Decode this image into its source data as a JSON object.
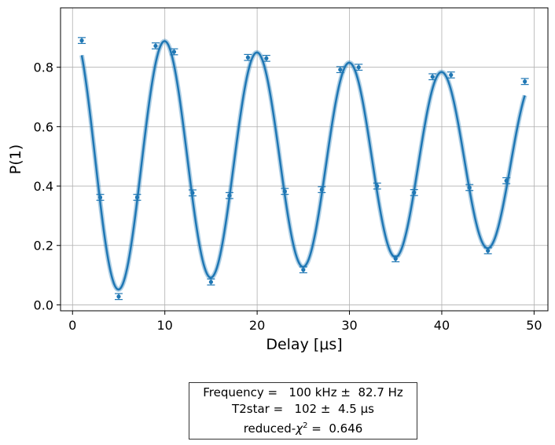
{
  "chart_data": {
    "type": "scatter",
    "xlabel": "Delay [μs]",
    "ylabel": "P(1)",
    "xlim": [
      -1.3,
      51.5
    ],
    "ylim": [
      -0.02,
      1.0
    ],
    "x_ticks": [
      0,
      10,
      20,
      30,
      40,
      50
    ],
    "y_ticks": [
      0.0,
      0.2,
      0.4,
      0.6,
      0.8
    ],
    "x_tick_labels": [
      "0",
      "10",
      "20",
      "30",
      "40",
      "50"
    ],
    "y_tick_labels": [
      "0.0",
      "0.2",
      "0.4",
      "0.6",
      "0.8"
    ],
    "grid": true,
    "series": [
      {
        "kind": "errorbar-points",
        "color": "#1f77b4",
        "x": [
          1,
          3,
          5,
          7,
          9,
          11,
          13,
          15,
          17,
          19,
          21,
          23,
          25,
          27,
          29,
          31,
          33,
          35,
          37,
          39,
          41,
          43,
          45,
          47,
          49
        ],
        "y": [
          0.89,
          0.362,
          0.028,
          0.362,
          0.872,
          0.852,
          0.377,
          0.077,
          0.368,
          0.833,
          0.83,
          0.382,
          0.118,
          0.388,
          0.792,
          0.8,
          0.4,
          0.155,
          0.378,
          0.768,
          0.774,
          0.395,
          0.182,
          0.418,
          0.752
        ],
        "yerr": [
          0.01,
          0.01,
          0.01,
          0.01,
          0.01,
          0.01,
          0.01,
          0.01,
          0.01,
          0.01,
          0.01,
          0.01,
          0.01,
          0.01,
          0.01,
          0.01,
          0.01,
          0.01,
          0.01,
          0.01,
          0.01,
          0.01,
          0.01,
          0.01,
          0.01
        ]
      },
      {
        "kind": "fit-curve",
        "color": "#1f77b4",
        "model": "amplitude * exp(-t/T2) * cos(2*pi*f*t) + offset",
        "params": {
          "frequency_MHz": 0.1,
          "t2_us": 102,
          "amplitude": 0.45,
          "offset": 0.48
        },
        "x_range": [
          1,
          49
        ]
      }
    ]
  },
  "fit_report": {
    "line1": "Frequency =   100 kHz ±  82.7 Hz",
    "line2": "T2star =   102 ±  4.5 μs",
    "line3_prefix": "reduced-",
    "line3_symbol": "χ",
    "line3_sup": "2",
    "line3_suffix": " =  0.646"
  }
}
